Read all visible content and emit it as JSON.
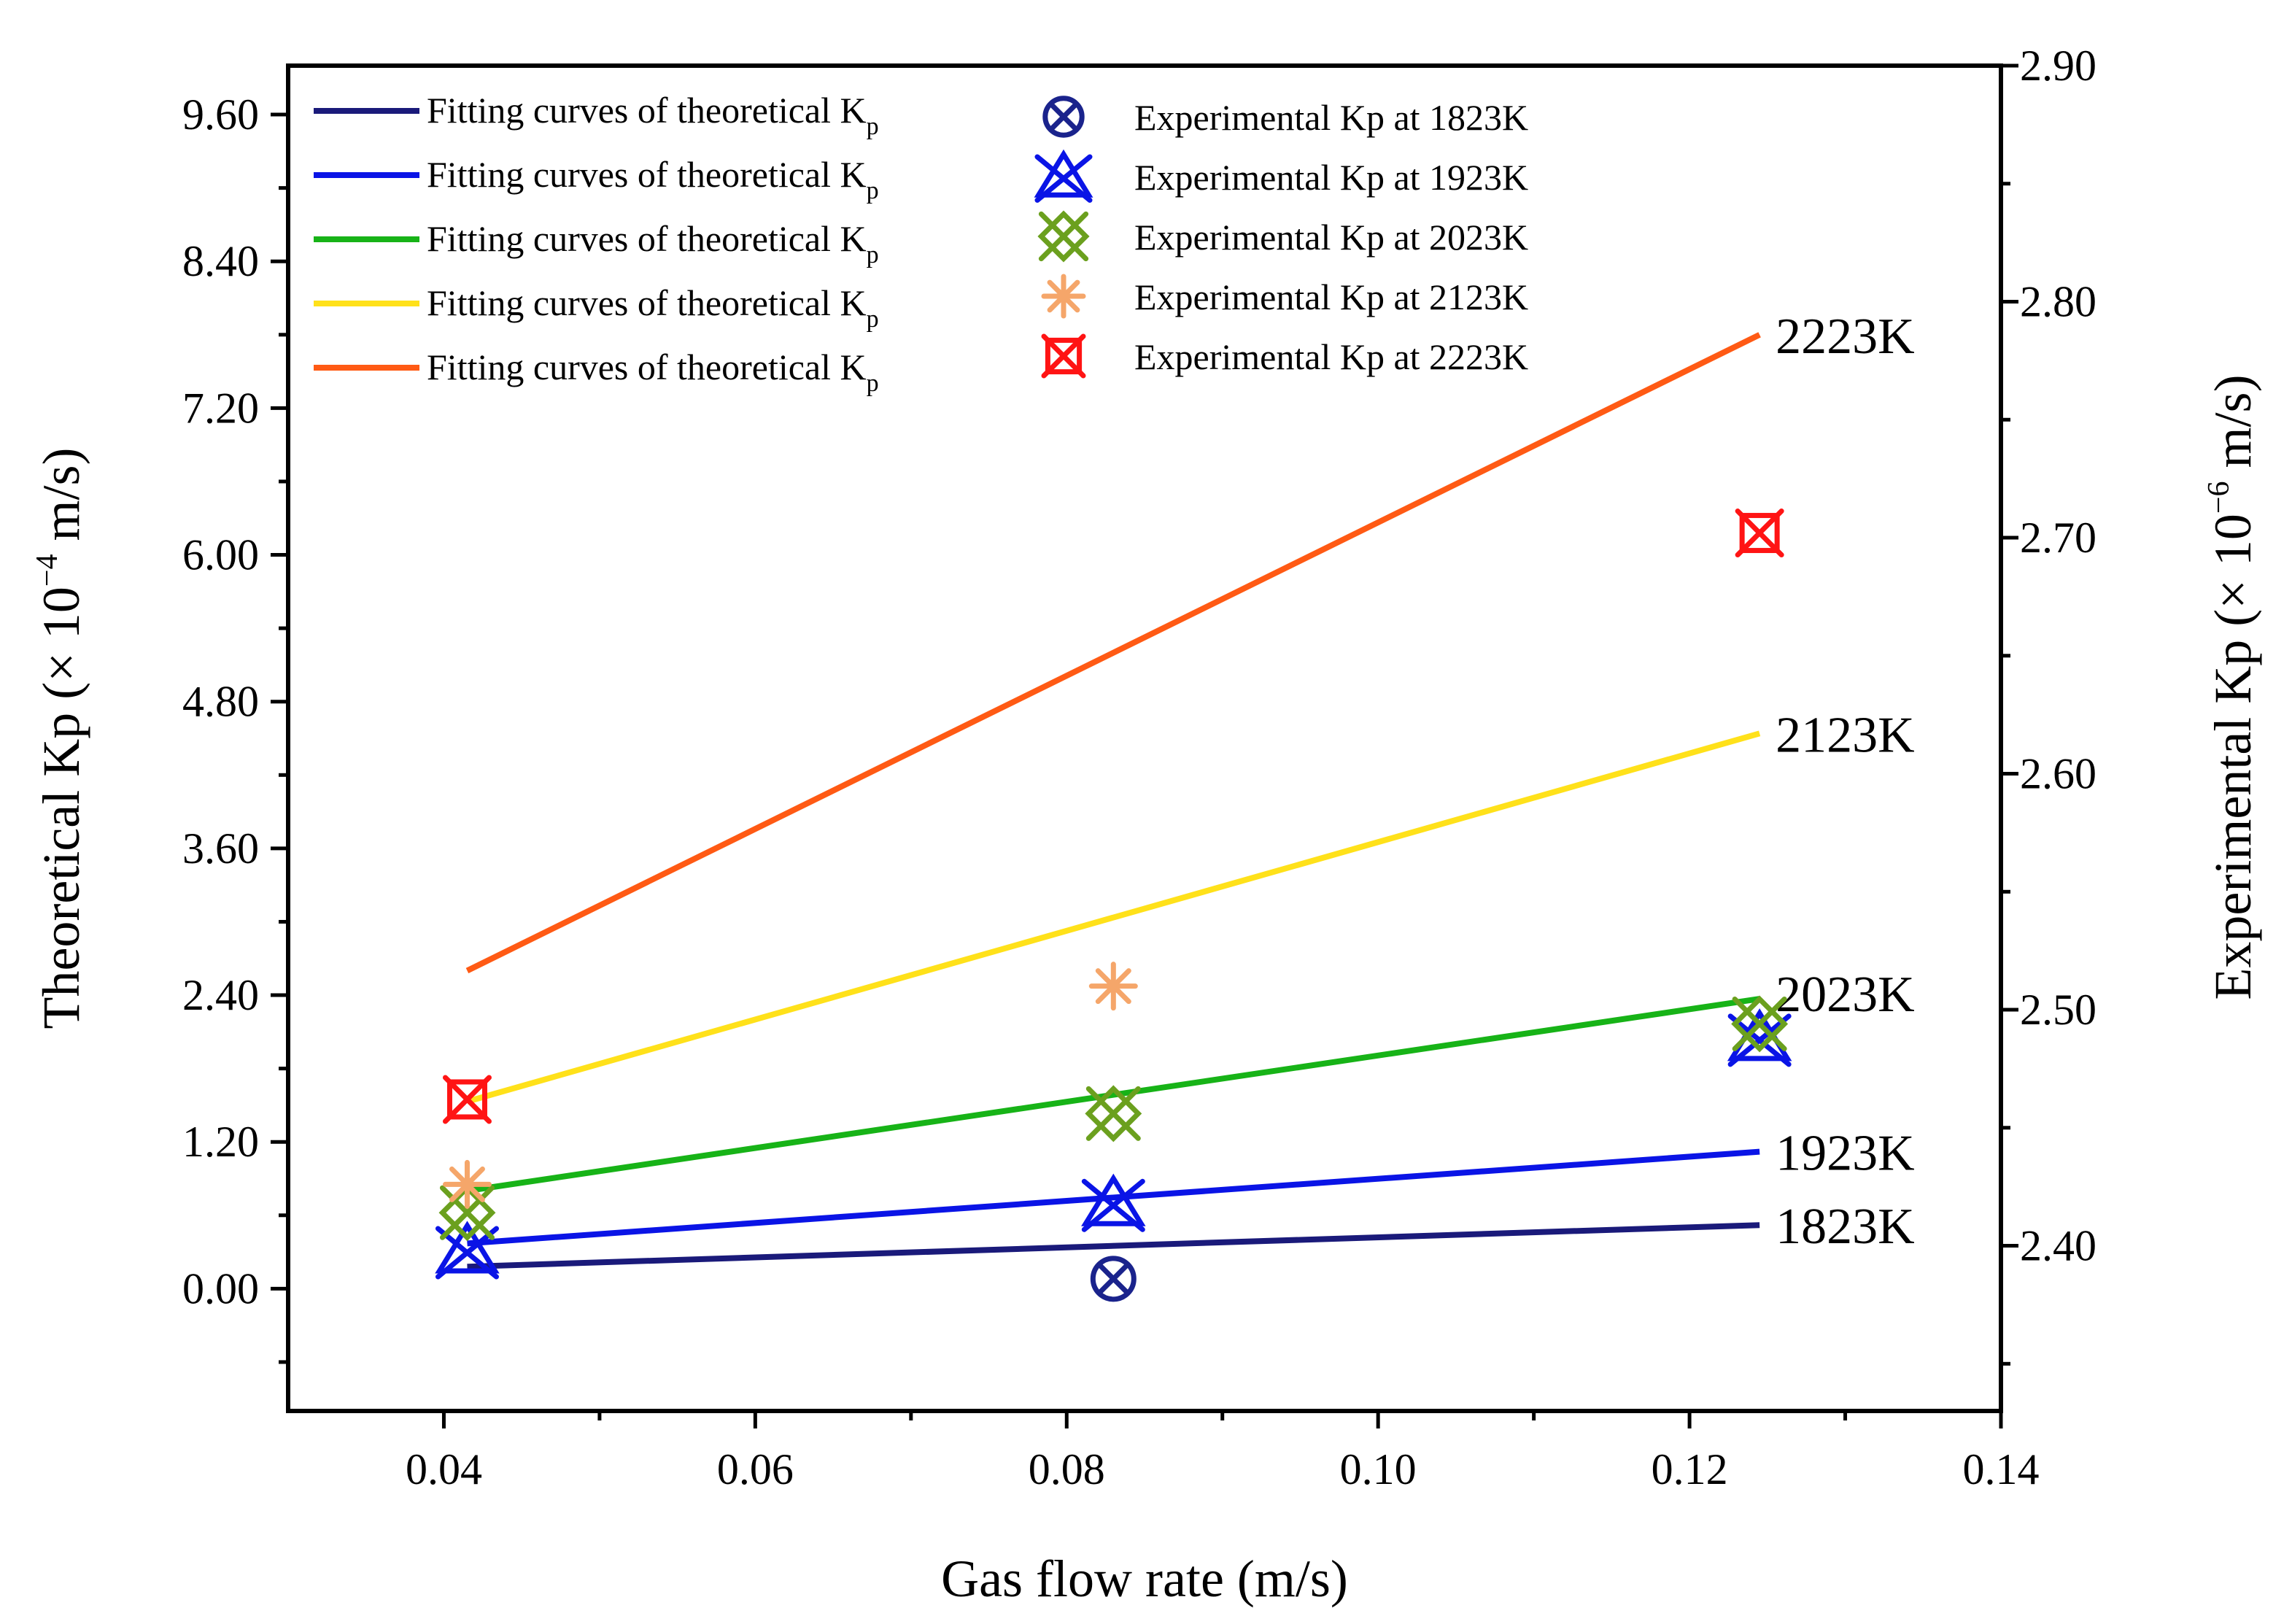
{
  "chart_data": {
    "type": "line",
    "xlabel": "Gas flow rate (m/s)",
    "ylabel_left": {
      "main": "Theoretical Kp (× 10",
      "sup": "−4",
      "tail": " m/s)"
    },
    "ylabel_right": {
      "main": "Experimental Kp (× 10",
      "sup": "−6",
      "tail": " m/s)"
    },
    "xlim": [
      0.03,
      0.14
    ],
    "ylim_left": [
      -1.0,
      10.0
    ],
    "ylim_right": [
      2.33,
      2.9
    ],
    "x_ticks": [
      "0.04",
      "0.06",
      "0.08",
      "0.10",
      "0.12",
      "0.14"
    ],
    "y_left_ticks": [
      "0.00",
      "1.20",
      "2.40",
      "3.60",
      "4.80",
      "6.00",
      "7.20",
      "8.40",
      "9.60"
    ],
    "y_right_ticks": [
      "2.40",
      "2.50",
      "2.60",
      "2.70",
      "2.80",
      "2.90"
    ],
    "theoretical_series": [
      {
        "name": "Fitting curves of theoretical K",
        "sub": "p",
        "label": "1823K",
        "color": "#1a1a7a",
        "x": [
          0.0415,
          0.1245
        ],
        "y": [
          0.18,
          0.52
        ]
      },
      {
        "name": "Fitting curves of theoretical K",
        "sub": "p",
        "label": "1923K",
        "color": "#0a14e6",
        "x": [
          0.0415,
          0.1245
        ],
        "y": [
          0.37,
          1.12
        ]
      },
      {
        "name": "Fitting curves of theoretical K",
        "sub": "p",
        "label": "2023K",
        "color": "#17b317",
        "x": [
          0.0415,
          0.1245
        ],
        "y": [
          0.8,
          2.37
        ]
      },
      {
        "name": "Fitting curves of theoretical K",
        "sub": "p",
        "label": "2123K",
        "color": "#ffe11a",
        "x": [
          0.0415,
          0.1245
        ],
        "y": [
          1.53,
          4.54
        ]
      },
      {
        "name": "Fitting curves of theoretical K",
        "sub": "p",
        "label": "2223K",
        "color": "#ff5a14",
        "x": [
          0.0415,
          0.1245
        ],
        "y": [
          2.6,
          7.8
        ]
      }
    ],
    "experimental_series": [
      {
        "name": "Experimental Kp at 1823K",
        "color": "#1a238c",
        "marker": "circle-x",
        "x": [
          0.083
        ],
        "y": [
          2.386
        ]
      },
      {
        "name": "Experimental Kp at 1923K",
        "color": "#0a14e6",
        "marker": "triangle-x",
        "x": [
          0.0415,
          0.083,
          0.1245
        ],
        "y": [
          2.398,
          2.418,
          2.488
        ]
      },
      {
        "name": "Experimental Kp at 2023K",
        "color": "#6ba01e",
        "marker": "diamond-x",
        "x": [
          0.0415,
          0.083,
          0.1245
        ],
        "y": [
          2.414,
          2.456,
          2.494
        ]
      },
      {
        "name": "Experimental Kp at 2123K",
        "color": "#f5a66a",
        "marker": "asterisk",
        "x": [
          0.0415,
          0.083
        ],
        "y": [
          2.426,
          2.51
        ]
      },
      {
        "name": "Experimental Kp at 2223K",
        "color": "#ff1414",
        "marker": "square-x",
        "x": [
          0.0415,
          0.1245
        ],
        "y": [
          2.462,
          2.702
        ]
      }
    ]
  }
}
